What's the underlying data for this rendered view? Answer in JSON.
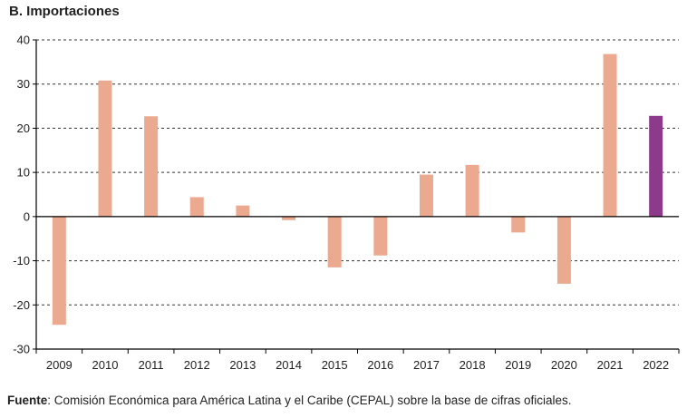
{
  "title": "B. Importaciones",
  "source": {
    "label": "Fuente",
    "text": ": Comisión Económica para América Latina y el Caribe (CEPAL) sobre la base de cifras oficiales."
  },
  "colors": {
    "bar": "#eba98f",
    "highlight": "#8e3a8a",
    "grid": "#333333",
    "axis": "#000000"
  },
  "chart_data": {
    "type": "bar",
    "title": "B. Importaciones",
    "xlabel": "",
    "ylabel": "",
    "categories": [
      "2009",
      "2010",
      "2011",
      "2012",
      "2013",
      "2014",
      "2015",
      "2016",
      "2017",
      "2018",
      "2019",
      "2020",
      "2021",
      "2022"
    ],
    "values": [
      -24.5,
      30.8,
      22.7,
      4.4,
      2.5,
      -0.8,
      -11.5,
      -8.8,
      9.5,
      11.7,
      -3.6,
      -15.2,
      36.8,
      22.8
    ],
    "highlight_index": 13,
    "ylim": [
      -30,
      40
    ],
    "yticks": [
      40,
      30,
      20,
      10,
      0,
      -10,
      -20,
      -30
    ],
    "grid": true,
    "grid_style": "dashed"
  }
}
